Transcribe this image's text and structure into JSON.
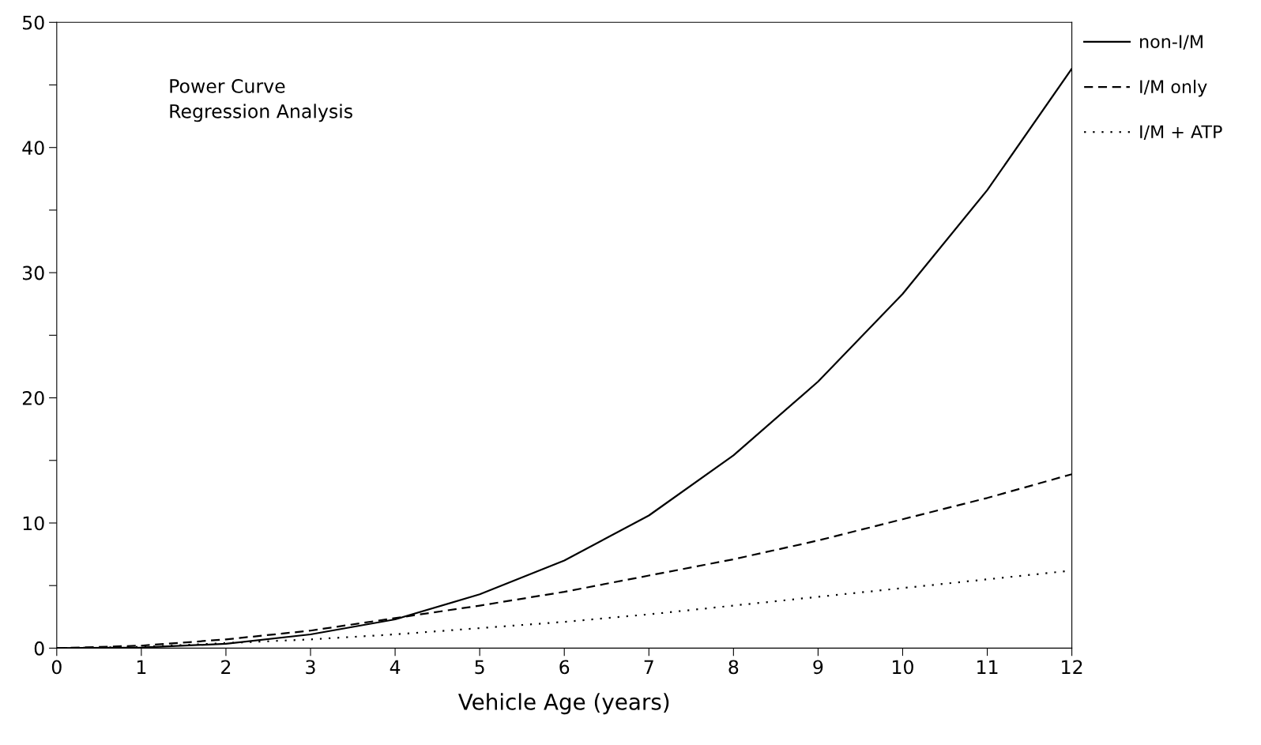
{
  "chart_data": {
    "type": "line",
    "xlabel": "Vehicle Age (years)",
    "annotations": [
      "Power Curve\nRegression Analysis"
    ],
    "x": [
      0,
      1,
      2,
      3,
      4,
      5,
      6,
      7,
      8,
      9,
      10,
      11,
      12
    ],
    "series": [
      {
        "name": "non-I/M",
        "color": "#000000",
        "line_style": "solid",
        "values": [
          0,
          0.05,
          0.35,
          1.1,
          2.3,
          4.3,
          7.0,
          10.6,
          15.4,
          21.3,
          28.3,
          36.6,
          46.3
        ]
      },
      {
        "name": "I/M only",
        "color": "#000000",
        "line_style": "dashed",
        "values": [
          0,
          0.2,
          0.7,
          1.4,
          2.4,
          3.4,
          4.5,
          5.8,
          7.1,
          8.6,
          10.3,
          12.0,
          13.9
        ]
      },
      {
        "name": "I/M + ATP",
        "color": "#000000",
        "line_style": "dotted",
        "values": [
          0,
          0.1,
          0.4,
          0.7,
          1.1,
          1.6,
          2.1,
          2.7,
          3.4,
          4.1,
          4.8,
          5.5,
          6.2
        ]
      }
    ],
    "xlim": [
      0,
      12
    ],
    "ylim": [
      0,
      50
    ],
    "xticks": [
      0,
      1,
      2,
      3,
      4,
      5,
      6,
      7,
      8,
      9,
      10,
      11,
      12
    ],
    "yticks": [
      0,
      {
        "value": 5,
        "label": null
      },
      10,
      {
        "value": 15,
        "label": null
      },
      20,
      {
        "value": 25,
        "label": null
      },
      30,
      {
        "value": 35,
        "label": null
      },
      40,
      {
        "value": 45,
        "label": null
      },
      50
    ],
    "grid": false,
    "legend": "top right",
    "marker": "none"
  }
}
